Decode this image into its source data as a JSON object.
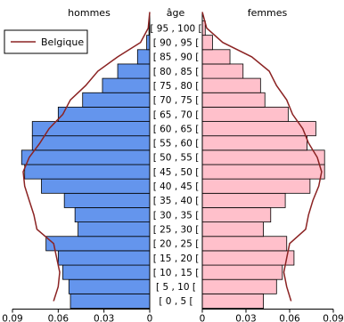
{
  "chart_data": {
    "type": "bar",
    "orientation": "horizontal",
    "subtype": "population-pyramid",
    "headers": {
      "left": "hommes",
      "center": "âge",
      "right": "femmes"
    },
    "categories": [
      "[ 0 , 5 [",
      "[ 5 , 10 [",
      "[ 10 , 15 [",
      "[ 15 , 20 [",
      "[ 20 , 25 [",
      "[ 25 , 30 [",
      "[ 30 , 35 [",
      "[ 35 , 40 [",
      "[ 40 , 45 [",
      "[ 45 , 50 [",
      "[ 50 , 55 [",
      "[ 55 , 60 [",
      "[ 60 , 65 [",
      "[ 65 , 70 [",
      "[ 70 , 75 [",
      "[ 75 , 80 [",
      "[ 80 , 85 [",
      "[ 85 , 90 [",
      "[ 90 , 95 [",
      "[ 95 , 100 ["
    ],
    "series": [
      {
        "side": "left",
        "color": "#6495ED",
        "values": [
          0.052,
          0.053,
          0.057,
          0.06,
          0.068,
          0.047,
          0.049,
          0.056,
          0.071,
          0.082,
          0.084,
          0.077,
          0.077,
          0.06,
          0.044,
          0.031,
          0.021,
          0.008,
          0.002,
          0.0005
        ]
      },
      {
        "side": "right",
        "color": "#FFC0CB",
        "values": [
          0.042,
          0.051,
          0.055,
          0.063,
          0.058,
          0.042,
          0.047,
          0.057,
          0.074,
          0.084,
          0.084,
          0.072,
          0.078,
          0.059,
          0.043,
          0.04,
          0.028,
          0.019,
          0.007,
          0.002
        ]
      },
      {
        "name": "Belgique",
        "type": "line",
        "color": "#8B2323",
        "men": [
          0.063,
          0.06,
          0.059,
          0.061,
          0.063,
          0.074,
          0.076,
          0.079,
          0.082,
          0.083,
          0.079,
          0.072,
          0.066,
          0.057,
          0.052,
          0.042,
          0.034,
          0.021,
          0.006,
          0.001
        ],
        "women": [
          0.061,
          0.058,
          0.056,
          0.058,
          0.06,
          0.071,
          0.073,
          0.076,
          0.08,
          0.082,
          0.079,
          0.073,
          0.069,
          0.062,
          0.058,
          0.051,
          0.046,
          0.034,
          0.014,
          0.003
        ]
      }
    ],
    "xlim": [
      0,
      0.09
    ],
    "xticks": [
      0,
      0.03,
      0.06,
      0.09
    ],
    "xtick_labels_left": [
      "0",
      "0.03",
      "0.06",
      "0.09"
    ],
    "xtick_labels_right": [
      "0",
      "0.03",
      "0.06",
      "0.09"
    ],
    "legend": {
      "position": "top-left",
      "entries": [
        "Belgique"
      ]
    },
    "grid": false
  }
}
